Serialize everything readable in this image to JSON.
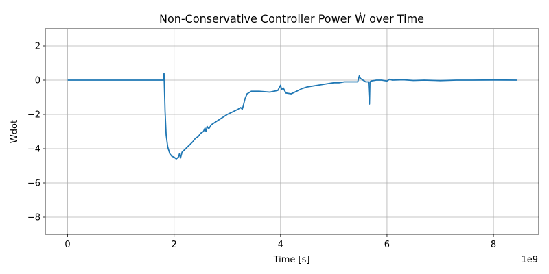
{
  "chart_data": {
    "type": "line",
    "title": "Non-Conservative Controller Power Ẇ over Time",
    "xlabel": "Time [s]",
    "ylabel": "Wdot",
    "x_offset_label": "1e9",
    "xlim": [
      -0.42,
      8.85
    ],
    "ylim": [
      -9,
      3
    ],
    "x_ticks": [
      0,
      2,
      4,
      6,
      8
    ],
    "y_ticks": [
      2,
      0,
      -2,
      -4,
      -6,
      -8
    ],
    "x_tick_labels": [
      "0",
      "2",
      "4",
      "6",
      "8"
    ],
    "y_tick_labels": [
      "2",
      "0",
      "−2",
      "−4",
      "−6",
      "−8"
    ],
    "grid": true,
    "series": [
      {
        "color": "#1f77b4",
        "x": [
          0.0,
          1.0,
          1.8,
          1.81,
          1.815,
          1.83,
          1.85,
          1.88,
          1.92,
          1.96,
          2.0,
          2.04,
          2.08,
          2.1,
          2.12,
          2.15,
          2.2,
          2.25,
          2.3,
          2.35,
          2.4,
          2.45,
          2.5,
          2.55,
          2.58,
          2.6,
          2.62,
          2.65,
          2.7,
          2.75,
          2.8,
          2.9,
          3.0,
          3.1,
          3.2,
          3.25,
          3.28,
          3.3,
          3.33,
          3.37,
          3.45,
          3.6,
          3.8,
          3.95,
          4.0,
          4.02,
          4.05,
          4.1,
          4.2,
          4.3,
          4.4,
          4.5,
          4.7,
          4.9,
          5.0,
          5.1,
          5.2,
          5.35,
          5.45,
          5.48,
          5.5,
          5.55,
          5.6,
          5.65,
          5.67,
          5.68,
          5.7,
          5.8,
          5.9,
          6.0,
          6.05,
          6.1,
          6.3,
          6.5,
          6.7,
          7.0,
          7.3,
          7.6,
          8.0,
          8.45
        ],
        "y": [
          0.0,
          0.0,
          0.0,
          0.4,
          -0.2,
          -1.8,
          -3.2,
          -3.9,
          -4.3,
          -4.45,
          -4.5,
          -4.6,
          -4.5,
          -4.3,
          -4.55,
          -4.2,
          -4.05,
          -3.9,
          -3.75,
          -3.6,
          -3.4,
          -3.3,
          -3.1,
          -3.0,
          -2.8,
          -3.0,
          -2.7,
          -2.85,
          -2.6,
          -2.5,
          -2.4,
          -2.2,
          -2.0,
          -1.85,
          -1.7,
          -1.6,
          -1.7,
          -1.5,
          -1.1,
          -0.8,
          -0.65,
          -0.65,
          -0.7,
          -0.6,
          -0.3,
          -0.55,
          -0.45,
          -0.75,
          -0.8,
          -0.65,
          -0.5,
          -0.4,
          -0.3,
          -0.2,
          -0.15,
          -0.15,
          -0.1,
          -0.1,
          -0.1,
          0.25,
          0.1,
          0.0,
          -0.1,
          -0.1,
          -1.4,
          -0.1,
          -0.05,
          0.0,
          0.0,
          -0.05,
          0.05,
          0.0,
          0.02,
          -0.02,
          0.0,
          -0.03,
          0.0,
          0.0,
          0.01,
          0.0
        ]
      }
    ]
  }
}
